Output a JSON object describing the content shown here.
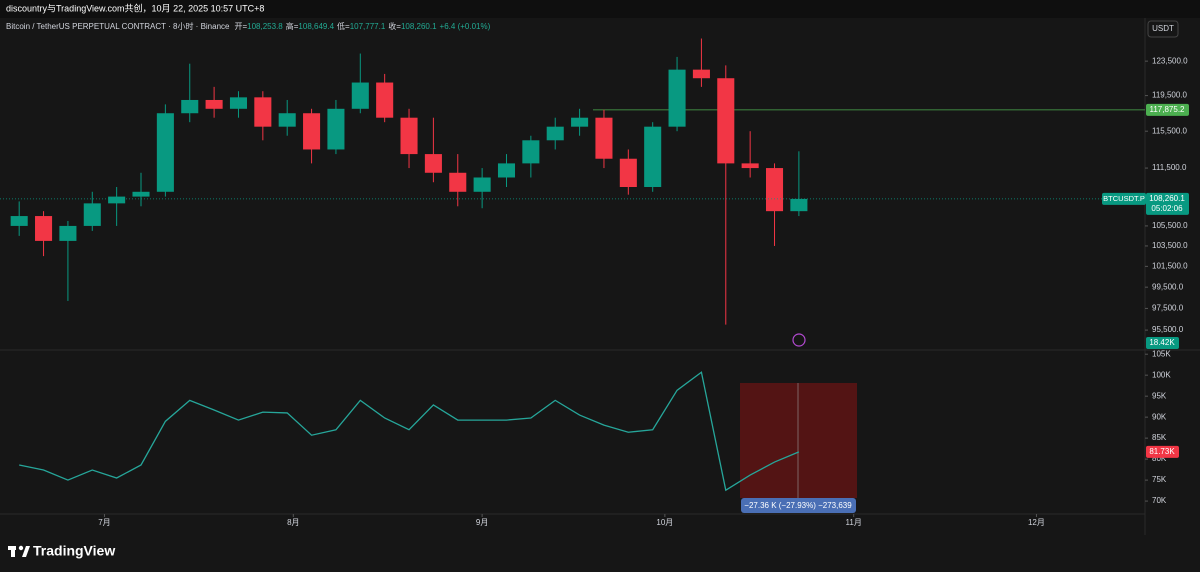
{
  "header": {
    "text": "discountry与TradingView.com共创，10月 22, 2025 10:57 UTC+8"
  },
  "legend": {
    "symbol": "Bitcoin / TetherUS PERPETUAL CONTRACT · 8小时 · Binance",
    "ohlc": [
      {
        "key": "开=",
        "value": "108,253.8"
      },
      {
        "key": "高=",
        "value": "108,649.4"
      },
      {
        "key": "低=",
        "value": "107,777.1"
      },
      {
        "key": "收=",
        "value": "108,260.1"
      }
    ],
    "change": "+6.4 (+0.01%)"
  },
  "currency": "USDT",
  "chart_data": [
    {
      "type": "candlestick",
      "log_scale": true,
      "up_color": "#089981",
      "down_color": "#f23645",
      "open": [
        105500,
        106500,
        104000,
        105500,
        107800,
        108500,
        109000,
        117500,
        119000,
        118000,
        119300,
        116000,
        117500,
        113500,
        118000,
        121000,
        117000,
        113000,
        111000,
        109000,
        110500,
        112000,
        114500,
        116000,
        117000,
        112500,
        109500,
        116000,
        122500,
        121500,
        112000,
        111500,
        107000
      ],
      "high": [
        108000,
        107000,
        106000,
        109000,
        109500,
        111000,
        118500,
        123200,
        120500,
        120000,
        120000,
        119000,
        118000,
        119000,
        124400,
        122000,
        118000,
        117000,
        113000,
        111500,
        113000,
        115000,
        117000,
        118000,
        117900,
        113500,
        116500,
        124000,
        126200,
        123000,
        115500,
        112000,
        113300
      ],
      "low": [
        104500,
        102500,
        98200,
        105000,
        105500,
        107500,
        108500,
        116500,
        117000,
        117000,
        114500,
        115000,
        112000,
        113000,
        117500,
        116500,
        111500,
        110000,
        107500,
        107300,
        109500,
        110500,
        113500,
        115000,
        111500,
        108700,
        109000,
        115500,
        120500,
        96000,
        110500,
        103500,
        106500
      ],
      "close": [
        106500,
        104000,
        105500,
        107800,
        108500,
        109000,
        117500,
        119000,
        118000,
        119300,
        116000,
        117500,
        113500,
        118000,
        121000,
        117000,
        113000,
        111000,
        109000,
        110500,
        112000,
        114500,
        116000,
        117000,
        112500,
        109500,
        116000,
        122500,
        121500,
        112000,
        111500,
        107000,
        108260.1
      ],
      "xlim": [
        0,
        46.5
      ],
      "xticks": [
        {
          "value": 4,
          "label": "7月"
        },
        {
          "value": 11.75,
          "label": "8月"
        },
        {
          "value": 19.5,
          "label": "9月"
        },
        {
          "value": 27,
          "label": "10月"
        },
        {
          "value": 34.75,
          "label": "11月"
        },
        {
          "value": 42.25,
          "label": "12月"
        }
      ],
      "ylim": [
        93700,
        128700
      ],
      "yticks": [
        {
          "value": 123500,
          "label": "123,500.0"
        },
        {
          "value": 119500,
          "label": "119,500.0"
        },
        {
          "value": 115500,
          "label": "115,500.0"
        },
        {
          "value": 111500,
          "label": "111,500.0"
        },
        {
          "value": 105500,
          "label": "105,500.0"
        },
        {
          "value": 103500,
          "label": "103,500.0"
        },
        {
          "value": 101500,
          "label": "101,500.0"
        },
        {
          "value": 99500,
          "label": "99,500.0"
        },
        {
          "value": 97500,
          "label": "97,500.0"
        },
        {
          "value": 95500,
          "label": "95,500.0"
        }
      ],
      "hline": {
        "value": 117875.2,
        "label": "117,875.2",
        "color": "#4caf50"
      },
      "last_price": {
        "value": 108260.1,
        "label": "108,260.1",
        "symbol": "BTCUSDT.P",
        "countdown": "05:02:06",
        "color": "#089981"
      },
      "volume_tag": {
        "label": "18.42K",
        "color": "#089981"
      }
    },
    {
      "type": "line",
      "color": "#26a69a",
      "values": [
        78.6,
        77.4,
        75,
        77.4,
        75.5,
        78.6,
        89,
        94,
        91.7,
        89.3,
        91.2,
        91,
        85.7,
        87,
        94,
        89.8,
        87,
        92.9,
        89.3,
        89.3,
        89.3,
        89.8,
        94,
        90.5,
        88.1,
        86.4,
        87,
        96.4,
        100.7,
        72.6,
        76.2,
        79.3,
        81.73
      ],
      "ylim": [
        67.4,
        106
      ],
      "yticks": [
        {
          "value": 105,
          "label": "105K"
        },
        {
          "value": 100,
          "label": "100K"
        },
        {
          "value": 95,
          "label": "95K"
        },
        {
          "value": 90,
          "label": "90K"
        },
        {
          "value": 85,
          "label": "85K"
        },
        {
          "value": 80,
          "label": "80K"
        },
        {
          "value": 75,
          "label": "75K"
        },
        {
          "value": 70,
          "label": "70K"
        }
      ],
      "last": {
        "value": 81.73,
        "label": "81.73K",
        "color": "#f23645"
      },
      "annotation": "−27.36 K (−27.93%) −273,639"
    }
  ],
  "footer": {
    "brand": "TradingView"
  }
}
